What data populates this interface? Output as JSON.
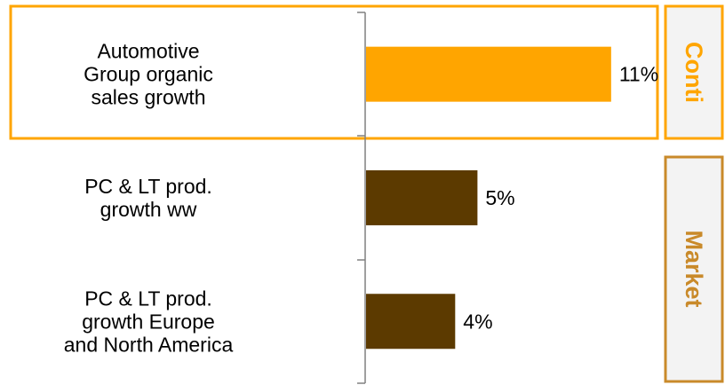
{
  "colors": {
    "accent": "#ffa500",
    "bar_conti": "#ffa500",
    "bar_market": "#5c3a00",
    "market_tab_border": "#c98a2a",
    "tab_fill": "#f3f3f3",
    "axis": "#808080"
  },
  "chart_data": {
    "type": "bar",
    "orientation": "horizontal",
    "categories": [
      [
        "Automotive",
        "Group organic",
        "sales growth"
      ],
      [
        "PC & LT prod.",
        "growth ww"
      ],
      [
        "PC & LT prod.",
        "growth Europe",
        "and North America"
      ]
    ],
    "values": [
      11,
      5,
      4
    ],
    "value_labels": [
      "11%",
      "5%",
      "4%"
    ],
    "unit": "%",
    "xlim": [
      0,
      13
    ],
    "groups": [
      {
        "label": "Conti",
        "categories": [
          0
        ]
      },
      {
        "label": "Market",
        "categories": [
          1,
          2
        ]
      }
    ],
    "title": "",
    "xlabel": "",
    "ylabel": "",
    "grid": false
  }
}
